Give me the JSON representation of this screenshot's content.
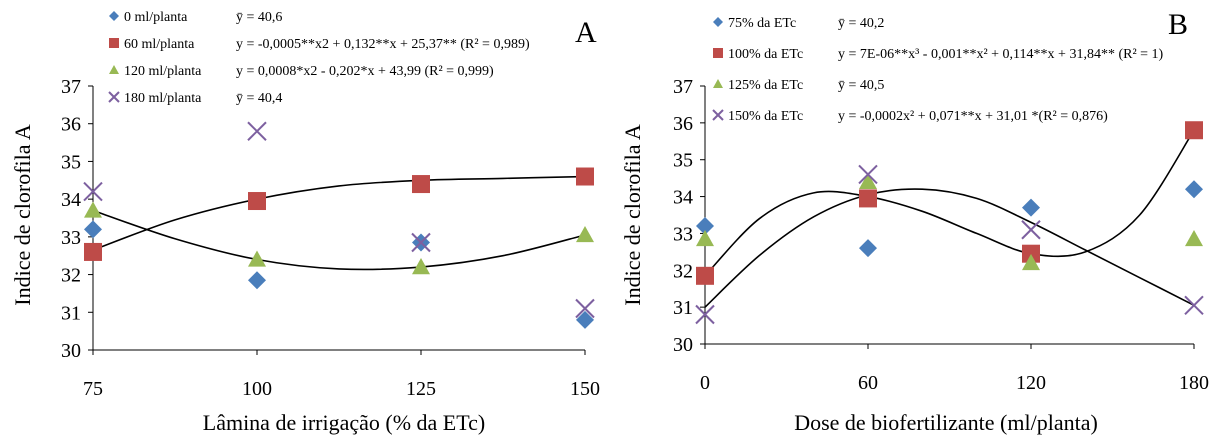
{
  "chart_data": [
    {
      "type": "scatter",
      "panel_letter": "A",
      "xlabel": "Lâmina de irrigação (% da ETc)",
      "ylabel": "Indice de clorofila A",
      "x_ticks": [
        75,
        100,
        125,
        150
      ],
      "y_ticks": [
        30,
        31,
        32,
        33,
        34,
        35,
        36,
        37
      ],
      "xlim": [
        75,
        150
      ],
      "ylim": [
        30,
        37
      ],
      "grid": false,
      "legend_position": "top-left",
      "series": [
        {
          "name": "0 ml/planta",
          "marker": "diamond",
          "color": "#4a7ebb",
          "equation": "ȳ = 40,6",
          "x": [
            75,
            100,
            125,
            150
          ],
          "y": [
            33.2,
            31.85,
            32.85,
            30.8
          ]
        },
        {
          "name": "60 ml/planta",
          "marker": "square",
          "color": "#be4b48",
          "equation": "y = -0,0005**x2 + 0,132**x + 25,37** (R² = 0,989)",
          "x": [
            75,
            100,
            125,
            150
          ],
          "y": [
            32.6,
            33.95,
            34.4,
            34.6
          ]
        },
        {
          "name": "120 ml/planta",
          "marker": "triangle",
          "color": "#98b954",
          "equation": "y = 0,0008*x2 - 0,202*x + 43,99 (R² = 0,999)",
          "x": [
            75,
            100,
            125,
            150
          ],
          "y": [
            33.7,
            32.4,
            32.2,
            33.05
          ]
        },
        {
          "name": "180 ml/planta",
          "marker": "x",
          "color": "#7d60a0",
          "equation": "ȳ = 40,4",
          "x": [
            75,
            100,
            125,
            150
          ],
          "y": [
            34.2,
            35.8,
            32.85,
            31.1
          ]
        }
      ],
      "trendlines": [
        {
          "series": "60 ml/planta",
          "x": [
            75,
            87.5,
            100,
            112.5,
            125,
            137.5,
            150
          ],
          "y": [
            32.65,
            33.45,
            34.0,
            34.35,
            34.5,
            34.55,
            34.6
          ]
        },
        {
          "series": "120 ml/planta",
          "x": [
            75,
            87.5,
            100,
            112.5,
            125,
            137.5,
            150
          ],
          "y": [
            33.7,
            32.95,
            32.4,
            32.15,
            32.2,
            32.5,
            33.05
          ]
        }
      ]
    },
    {
      "type": "scatter",
      "panel_letter": "B",
      "xlabel": "Dose de biofertilizante (ml/planta)",
      "ylabel": "Indice de clorofila A",
      "x_ticks": [
        0,
        60,
        120,
        180
      ],
      "y_ticks": [
        30,
        31,
        32,
        33,
        34,
        35,
        36,
        37
      ],
      "xlim": [
        0,
        180
      ],
      "ylim": [
        30,
        37
      ],
      "grid": false,
      "legend_position": "top-left",
      "series": [
        {
          "name": "75% da ETc",
          "marker": "diamond",
          "color": "#4a7ebb",
          "equation": "ȳ = 40,2",
          "x": [
            0,
            60,
            120,
            180
          ],
          "y": [
            33.2,
            32.6,
            33.7,
            34.2
          ]
        },
        {
          "name": "100% da ETc",
          "marker": "square",
          "color": "#be4b48",
          "equation": "y = 7E-06**x³ - 0,001**x² + 0,114**x + 31,84** (R² = 1)",
          "x": [
            0,
            60,
            120,
            180
          ],
          "y": [
            31.85,
            33.95,
            32.45,
            35.8
          ]
        },
        {
          "name": "125% da ETc",
          "marker": "triangle",
          "color": "#98b954",
          "equation": "ȳ = 40,5",
          "x": [
            0,
            60,
            120,
            180
          ],
          "y": [
            32.85,
            34.4,
            32.2,
            32.85
          ]
        },
        {
          "name": "150% da ETc",
          "marker": "x",
          "color": "#7d60a0",
          "equation": "y = -0,0002x² + 0,071**x + 31,01 *(R² = 0,876)",
          "x": [
            0,
            60,
            120,
            180
          ],
          "y": [
            30.8,
            34.6,
            33.1,
            31.05
          ]
        }
      ],
      "trendlines": [
        {
          "series": "100% da ETc",
          "x": [
            0,
            20,
            40,
            60,
            80,
            100,
            120,
            140,
            160,
            180
          ],
          "y": [
            31.85,
            33.4,
            34.1,
            34.0,
            33.6,
            33.0,
            32.45,
            32.5,
            33.5,
            35.8
          ]
        },
        {
          "series": "150% da ETc",
          "x": [
            0,
            20,
            40,
            60,
            80,
            100,
            120,
            140,
            160,
            180
          ],
          "y": [
            31.0,
            32.4,
            33.45,
            34.05,
            34.2,
            33.95,
            33.3,
            32.55,
            31.8,
            31.05
          ]
        }
      ]
    }
  ]
}
